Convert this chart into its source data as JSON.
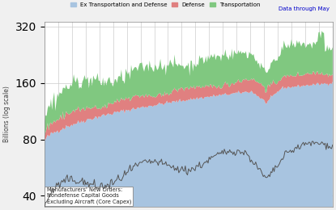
{
  "title": "",
  "ylabel": "Billions (log scale)",
  "legend_labels": [
    "Ex Transportation and Defense",
    "Defense",
    "Transportation"
  ],
  "legend_colors": [
    "#a8c4e0",
    "#e08080",
    "#80c880"
  ],
  "annotation_text": "Manufacturers' New Orders:\nNondefense Capital Goods\nExcluding Aircraft (Core Capex)",
  "data_note": "Data through May",
  "bg_color": "#f0f0f0",
  "plot_bg_color": "#ffffff",
  "grid_color": "#cccccc",
  "yticks": [
    40,
    80,
    160,
    320
  ],
  "ylim_log": [
    35,
    340
  ],
  "n_points": 267
}
